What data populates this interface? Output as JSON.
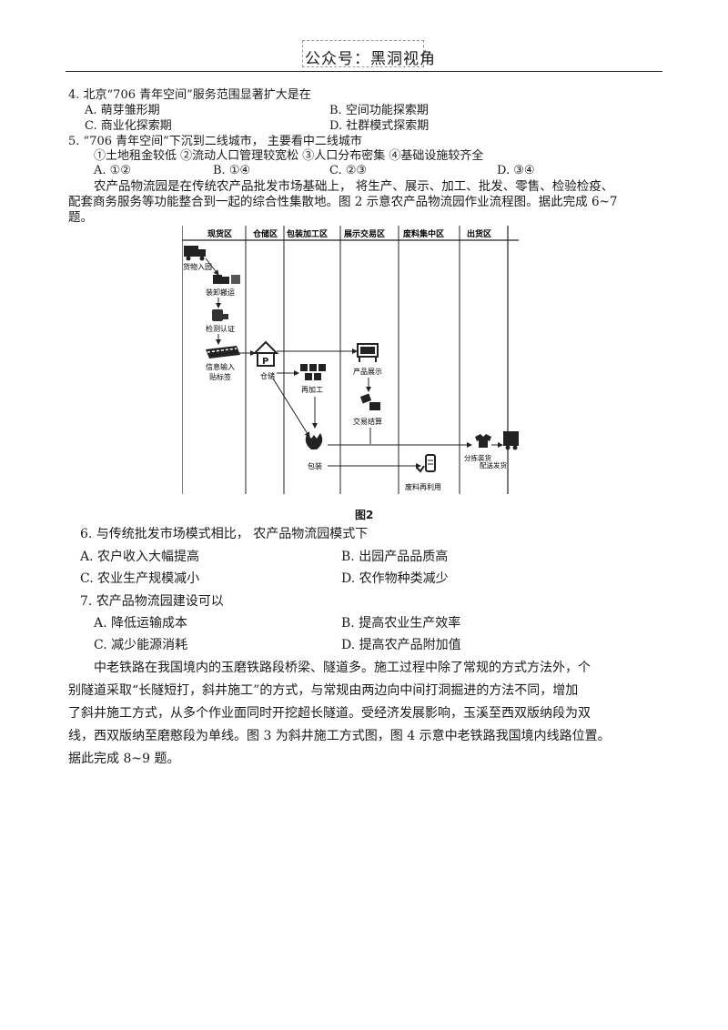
{
  "header": {
    "text": "公众号：黑洞视角"
  },
  "q4": {
    "stem": "4. 北京“706 青年空间”服务范围显著扩大是在",
    "options": [
      "A. 萌芽雏形期",
      "B. 空间功能探索期",
      "C. 商业化探索期",
      "D. 社群模式探索期"
    ]
  },
  "q5": {
    "stem": "5. “706 青年空间”下沉到二线城市，  主要看中二线城市",
    "statements": "①土地租金较低 ②流动人口管理较宽松 ③人口分布密集 ④基础设施较齐全",
    "options": [
      "A. ①②",
      "B. ①④",
      "C. ②③",
      "D. ③④"
    ]
  },
  "intro1": {
    "line1": "农产品物流园是在传统农产品批发市场基础上，  将生产、展示、加工、批发、零售、检验检疫、",
    "line2": "配套商务服务等功能整合到一起的综合性集散地。图 2  示意农产品物流园作业流程图。据此完成 6~7",
    "line3": "题。"
  },
  "figure2": {
    "zones": [
      "现货区",
      "仓储区",
      "包装加工区",
      "展示交易区",
      "废料集中区",
      "出货区"
    ],
    "nodes": {
      "n1": "货物入园",
      "n2": "装卸搬运",
      "n3": "检测认证",
      "n4a": "信息输入",
      "n4b": "贴标签",
      "n5": "仓储",
      "n6": "再加工",
      "n7": "产品展示",
      "n8": "交易结算",
      "n9": "包装",
      "n10": "废料再利用",
      "n11": "分拣装货",
      "n12": "配送发货"
    },
    "caption": "图2"
  },
  "q6": {
    "stem": "6. 与传统批发市场模式相比，  农产品物流园模式下",
    "options": [
      "A. 农户收入大幅提高",
      "B. 出园产品品质高",
      "C. 农业生产规模减小",
      "D. 农作物种类减少"
    ]
  },
  "q7": {
    "stem": "7. 农产品物流园建设可以",
    "options": [
      "A. 降低运输成本",
      "B. 提高农业生产效率",
      "C. 减少能源消耗",
      "D. 提高农产品附加值"
    ]
  },
  "intro2": {
    "lines": [
      "中老铁路在我国境内的玉磨铁路段桥梁、隧道多。施工过程中除了常规的方式方法外，个",
      "别隧道采取“长隧短打，斜井施工”的方式，与常规由两边向中间打洞掘进的方法不同，增加",
      "了斜井施工方式，从多个作业面同时开挖超长隧道。受经济发展影响，玉溪至西双版纳段为双",
      "线，西双版纳至磨憨段为单线。图 3 为斜井施工方式图，图 4 示意中老铁路我国境内线路位置。",
      "据此完成 8~9 题。"
    ]
  }
}
